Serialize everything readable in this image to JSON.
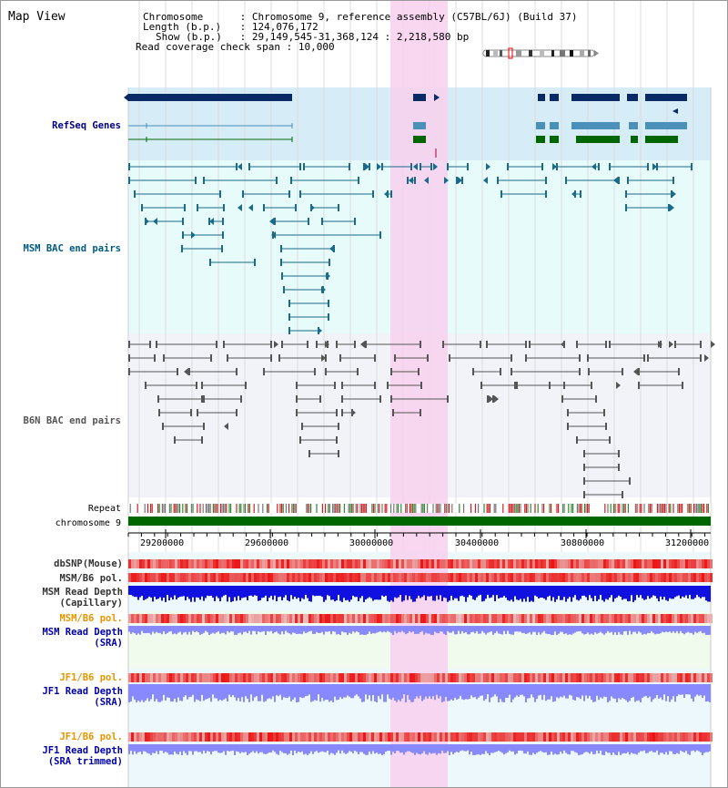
{
  "header": {
    "title": "Map View",
    "info_lines": [
      {
        "label": "Chromosome",
        "value": "Chromosome 9, reference assembly (C57BL/6J) (Build 37)"
      },
      {
        "label": "Length (b.p.)",
        "value": "124,076,172"
      },
      {
        "label": "Show (b.p.)",
        "value": "29,149,545-31,368,124 : 2,218,580 bp"
      },
      {
        "label": "Read coverage check span",
        "value": "10,000"
      }
    ]
  },
  "tracks": {
    "refseq": "RefSeq Genes",
    "msm_bac": "MSM BAC end pairs",
    "b6n_bac": "B6N BAC end pairs",
    "repeat": "Repeat",
    "chromosome": "chromosome 9"
  },
  "axis": {
    "ticks": [
      "29200000",
      "29600000",
      "30000000",
      "30400000",
      "30800000",
      "31200000"
    ]
  },
  "data_tracks": [
    {
      "key": "dbsnp",
      "lines": [
        "dbSNP(Mouse)"
      ],
      "color": "#333333"
    },
    {
      "key": "msm_b6_pol_cap",
      "lines": [
        "MSM/B6 pol."
      ],
      "color": "#333333"
    },
    {
      "key": "msm_depth_cap",
      "lines": [
        "MSM Read Depth",
        "(Capillary)"
      ],
      "color": "#333333"
    },
    {
      "key": "msm_b6_pol_sra",
      "lines": [
        "MSM/B6 pol."
      ],
      "color": "#e69500"
    },
    {
      "key": "msm_depth_sra",
      "lines": [
        "MSM Read Depth",
        "(SRA)"
      ],
      "color": "#0000aa"
    },
    {
      "key": "jf1_b6_pol",
      "lines": [
        "JF1/B6 pol."
      ],
      "color": "#e69500"
    },
    {
      "key": "jf1_depth_sra",
      "lines": [
        "JF1 Read Depth",
        "(SRA)"
      ],
      "color": "#0000aa"
    },
    {
      "key": "jf1_b6_pol_trim",
      "lines": [
        "JF1/B6 pol."
      ],
      "color": "#e69500"
    },
    {
      "key": "jf1_depth_trim",
      "lines": [
        "JF1 Read Depth",
        "(SRA trimmed)"
      ],
      "color": "#0000aa"
    }
  ],
  "colors": {
    "refseq_dark": "#0a2a66",
    "refseq_light": "#4a90b8",
    "refseq_green": "#006600",
    "msm_bac": "#1a6a8a",
    "b6n_bac": "#555555",
    "highlight": "#f8d0ef",
    "chromosome": "#006600",
    "msm_depth_dark": "#1010e0",
    "depth_light": "#8888ff"
  }
}
